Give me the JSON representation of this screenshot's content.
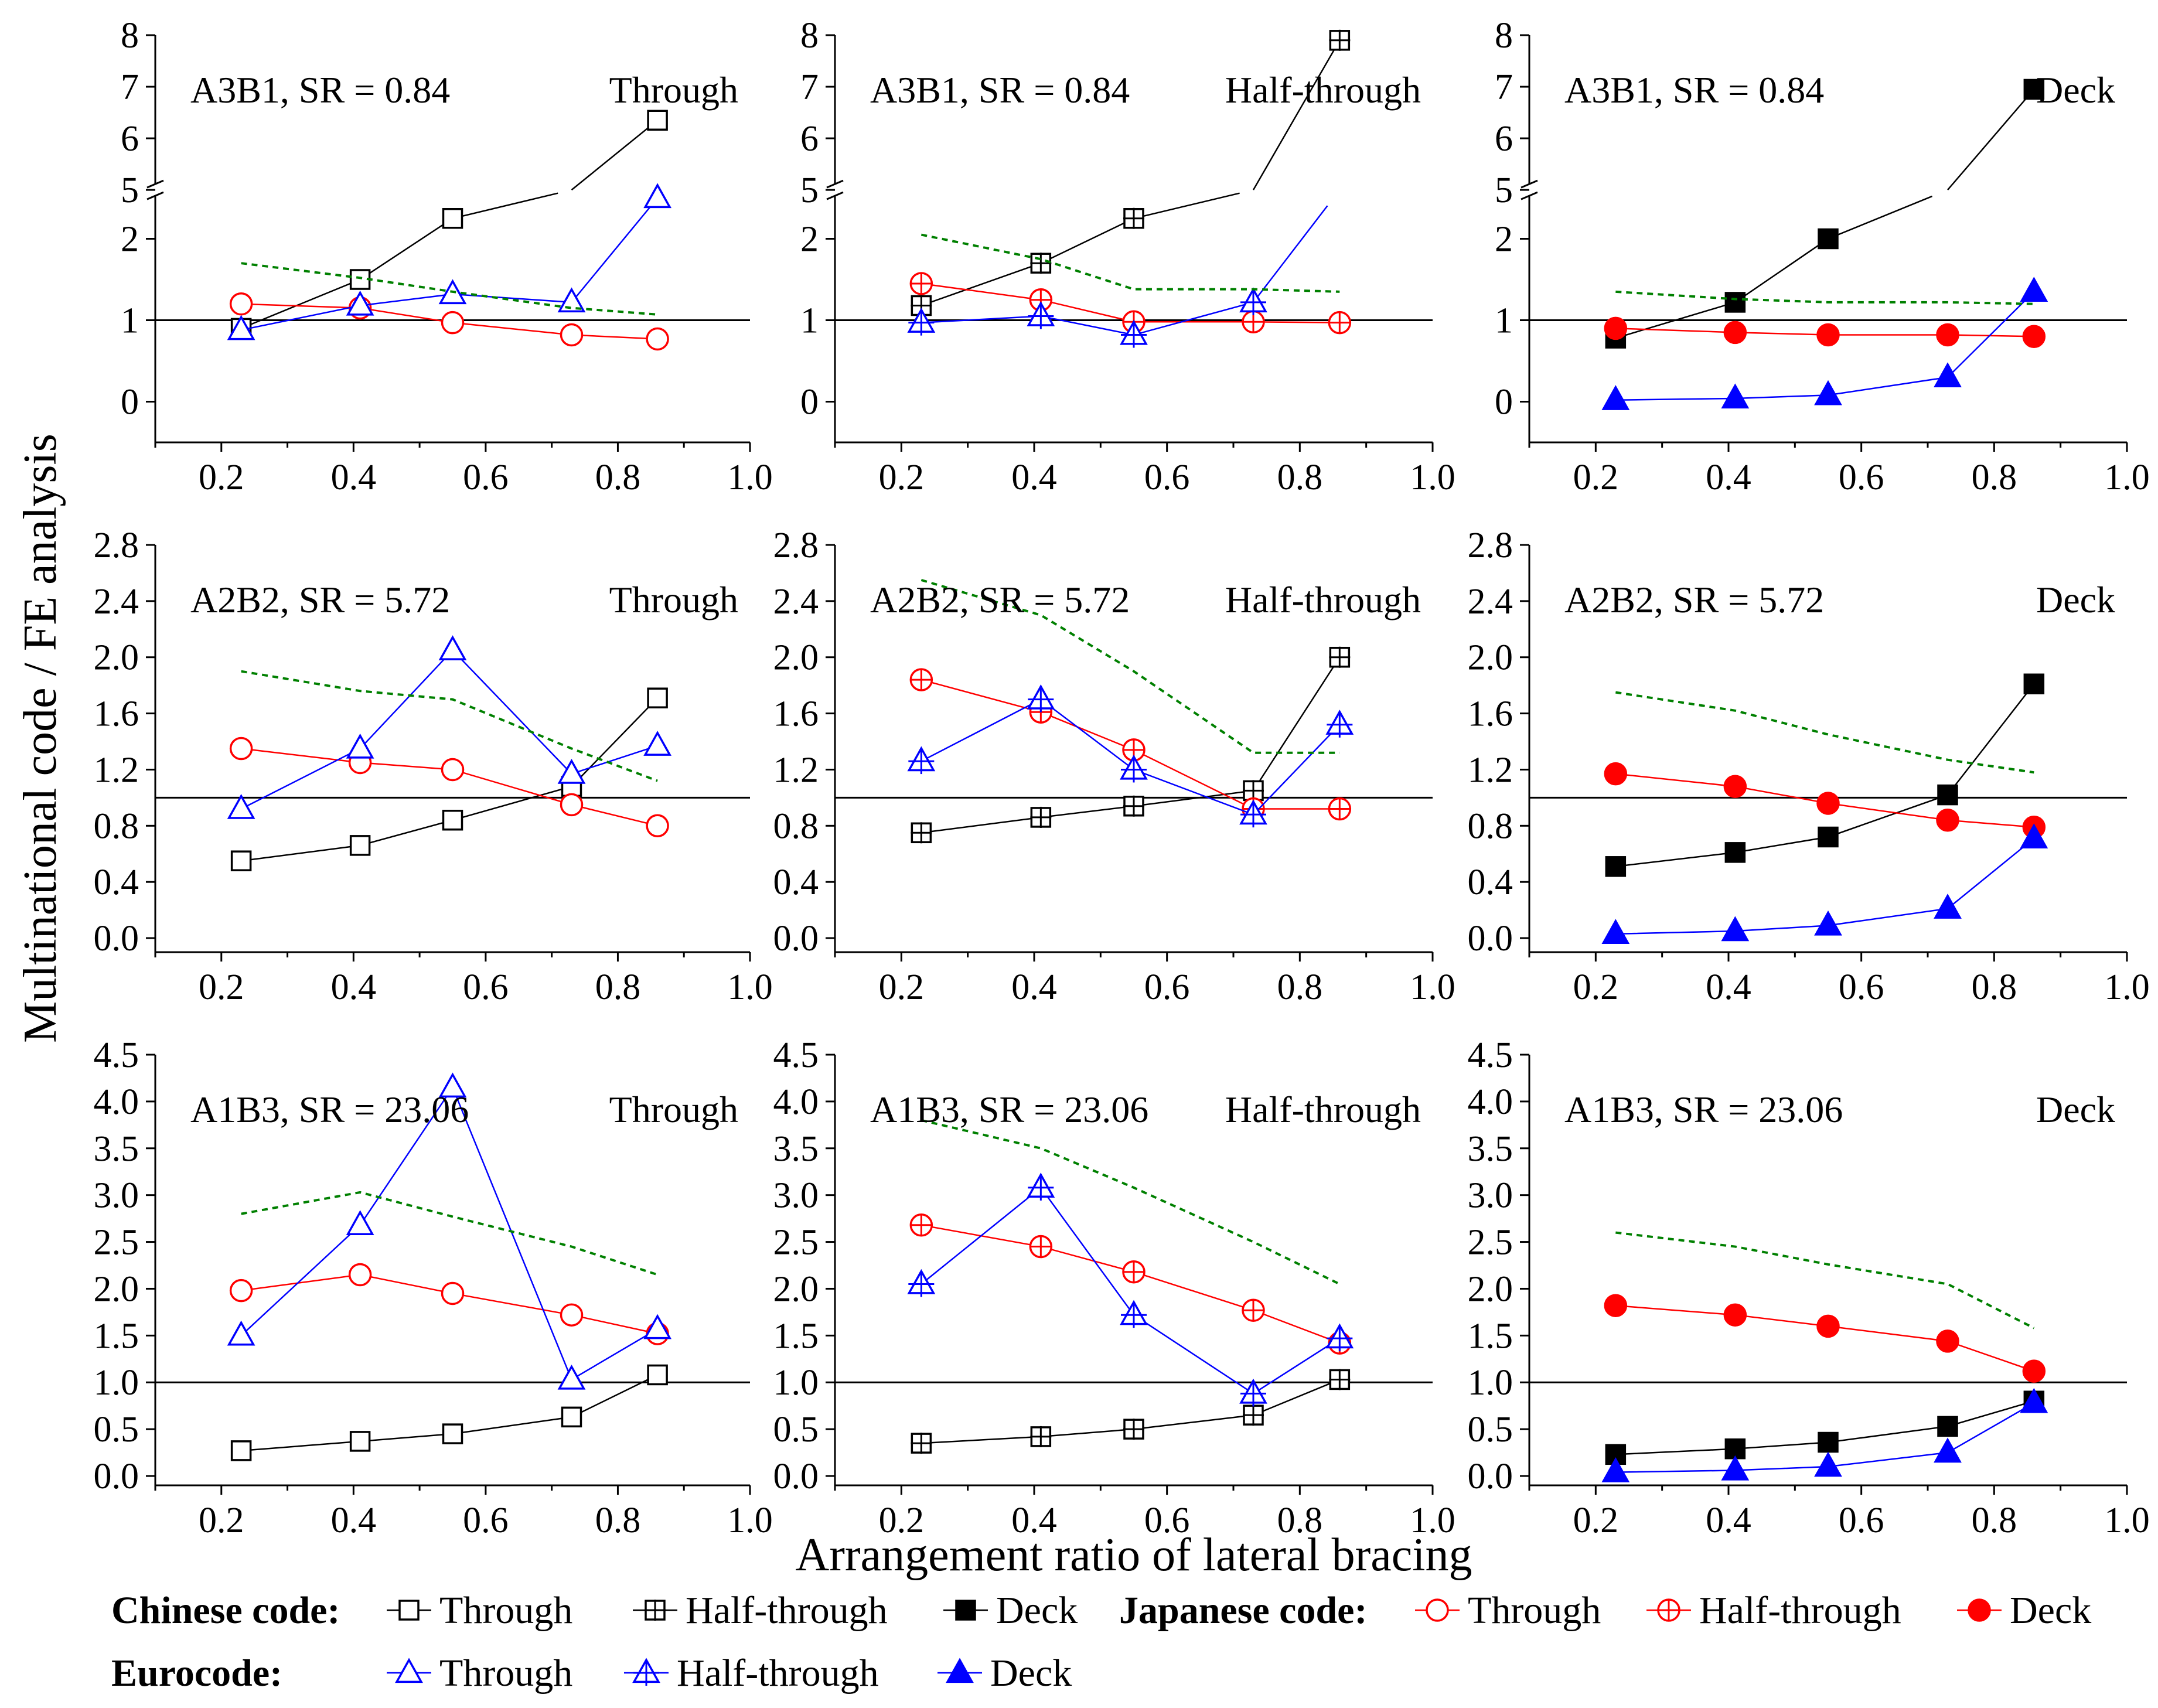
{
  "figure": {
    "ylabel": "Multinational code / FE analysis",
    "xlabel": "Arrangement ratio of lateral bracing"
  },
  "colors": {
    "chinese": "#000000",
    "japanese": "#ff0000",
    "eurocode": "#0000ff",
    "reference": "#008000"
  },
  "legend": {
    "chinese_label": "Chinese code:",
    "japanese_label": "Japanese code:",
    "eurocode_label": "Eurocode:",
    "through": "Through",
    "half_through": "Half-through",
    "deck": "Deck"
  },
  "chart_data": [
    {
      "type": "line",
      "row": 0,
      "col": 0,
      "case": "A3B1, SR = 0.84",
      "arrangement": "Through",
      "x": [
        0.23,
        0.41,
        0.55,
        0.73,
        0.86
      ],
      "xlim": [
        0.1,
        1.0
      ],
      "xticks": [
        0.2,
        0.4,
        0.6,
        0.8,
        1.0
      ],
      "ylim": [
        -0.5,
        8
      ],
      "yticks": [
        0,
        1,
        2,
        5,
        6,
        7,
        8
      ],
      "axis_break": {
        "from": 2.6,
        "to": 5.0
      },
      "hline": 1,
      "series": [
        {
          "name": "Chinese code - Through",
          "code": "chinese",
          "marker": "square",
          "filled": false,
          "values": [
            0.9,
            1.5,
            2.25,
            4.4,
            6.35
          ]
        },
        {
          "name": "Japanese code - Through",
          "code": "japanese",
          "marker": "circle",
          "filled": false,
          "values": [
            1.2,
            1.15,
            0.97,
            0.82,
            0.77
          ]
        },
        {
          "name": "Eurocode - Through",
          "code": "eurocode",
          "marker": "triangle",
          "filled": false,
          "values": [
            0.88,
            1.18,
            1.32,
            1.22,
            2.5
          ]
        },
        {
          "name": "Reference (dashed)",
          "code": "reference",
          "marker": "none",
          "dashed": true,
          "values": [
            1.7,
            1.52,
            1.35,
            1.15,
            1.07
          ]
        }
      ]
    },
    {
      "type": "line",
      "row": 0,
      "col": 1,
      "case": "A3B1, SR = 0.84",
      "arrangement": "Half-through",
      "x": [
        0.23,
        0.41,
        0.55,
        0.73,
        0.86
      ],
      "xlim": [
        0.1,
        1.0
      ],
      "xticks": [
        0.2,
        0.4,
        0.6,
        0.8,
        1.0
      ],
      "ylim": [
        -0.5,
        8
      ],
      "yticks": [
        0,
        1,
        2,
        5,
        6,
        7,
        8
      ],
      "axis_break": {
        "from": 2.6,
        "to": 5.0
      },
      "hline": 1,
      "series": [
        {
          "name": "Chinese code - Half-through",
          "code": "chinese",
          "marker": "square-plus",
          "filled": false,
          "values": [
            1.18,
            1.7,
            2.25,
            4.6,
            7.9
          ]
        },
        {
          "name": "Japanese code - Half-through",
          "code": "japanese",
          "marker": "circle-plus",
          "filled": false,
          "values": [
            1.45,
            1.25,
            0.98,
            0.98,
            0.97
          ]
        },
        {
          "name": "Eurocode - Half-through",
          "code": "eurocode",
          "marker": "triangle-plus",
          "filled": false,
          "values": [
            0.97,
            1.05,
            0.82,
            1.22,
            4.9
          ]
        },
        {
          "name": "Reference (dashed)",
          "code": "reference",
          "marker": "none",
          "dashed": true,
          "values": [
            2.05,
            1.75,
            1.38,
            1.38,
            1.35
          ]
        }
      ]
    },
    {
      "type": "line",
      "row": 0,
      "col": 2,
      "case": "A3B1, SR = 0.84",
      "arrangement": "Deck",
      "x": [
        0.23,
        0.41,
        0.55,
        0.73,
        0.86
      ],
      "xlim": [
        0.1,
        1.0
      ],
      "xticks": [
        0.2,
        0.4,
        0.6,
        0.8,
        1.0
      ],
      "ylim": [
        -0.5,
        8
      ],
      "yticks": [
        0,
        1,
        2,
        5,
        6,
        7,
        8
      ],
      "axis_break": {
        "from": 2.6,
        "to": 5.0
      },
      "hline": 1,
      "series": [
        {
          "name": "Chinese code - Deck",
          "code": "chinese",
          "marker": "square",
          "filled": true,
          "values": [
            0.78,
            1.22,
            2.0,
            4.6,
            6.95
          ]
        },
        {
          "name": "Japanese code - Deck",
          "code": "japanese",
          "marker": "circle",
          "filled": true,
          "values": [
            0.9,
            0.85,
            0.82,
            0.82,
            0.8
          ]
        },
        {
          "name": "Eurocode - Deck",
          "code": "eurocode",
          "marker": "triangle",
          "filled": true,
          "values": [
            0.02,
            0.04,
            0.08,
            0.3,
            1.35
          ]
        },
        {
          "name": "Reference (dashed)",
          "code": "reference",
          "marker": "none",
          "dashed": true,
          "values": [
            1.35,
            1.26,
            1.22,
            1.22,
            1.2
          ]
        }
      ]
    },
    {
      "type": "line",
      "row": 1,
      "col": 0,
      "case": "A2B2, SR = 5.72",
      "arrangement": "Through",
      "x": [
        0.23,
        0.41,
        0.55,
        0.73,
        0.86
      ],
      "xlim": [
        0.1,
        1.0
      ],
      "xticks": [
        0.2,
        0.4,
        0.6,
        0.8,
        1.0
      ],
      "ylim": [
        -0.1,
        2.8
      ],
      "yticks": [
        0.0,
        0.4,
        0.8,
        1.2,
        1.6,
        2.0,
        2.4,
        2.8
      ],
      "hline": 1,
      "series": [
        {
          "name": "Chinese code - Through",
          "code": "chinese",
          "marker": "square",
          "filled": false,
          "values": [
            0.55,
            0.66,
            0.84,
            1.08,
            1.71
          ]
        },
        {
          "name": "Japanese code - Through",
          "code": "japanese",
          "marker": "circle",
          "filled": false,
          "values": [
            1.35,
            1.25,
            1.2,
            0.95,
            0.8
          ]
        },
        {
          "name": "Eurocode - Through",
          "code": "eurocode",
          "marker": "triangle",
          "filled": false,
          "values": [
            0.92,
            1.35,
            2.05,
            1.17,
            1.37
          ]
        },
        {
          "name": "Reference (dashed)",
          "code": "reference",
          "marker": "none",
          "dashed": true,
          "values": [
            1.9,
            1.76,
            1.7,
            1.35,
            1.12
          ]
        }
      ]
    },
    {
      "type": "line",
      "row": 1,
      "col": 1,
      "case": "A2B2, SR = 5.72",
      "arrangement": "Half-through",
      "x": [
        0.23,
        0.41,
        0.55,
        0.73,
        0.86
      ],
      "xlim": [
        0.1,
        1.0
      ],
      "xticks": [
        0.2,
        0.4,
        0.6,
        0.8,
        1.0
      ],
      "ylim": [
        -0.1,
        2.8
      ],
      "yticks": [
        0.0,
        0.4,
        0.8,
        1.2,
        1.6,
        2.0,
        2.4,
        2.8
      ],
      "hline": 1,
      "series": [
        {
          "name": "Chinese code - Half-through",
          "code": "chinese",
          "marker": "square-plus",
          "filled": false,
          "values": [
            0.75,
            0.86,
            0.94,
            1.05,
            2.0
          ]
        },
        {
          "name": "Japanese code - Half-through",
          "code": "japanese",
          "marker": "circle-plus",
          "filled": false,
          "values": [
            1.84,
            1.61,
            1.34,
            0.92,
            0.92
          ]
        },
        {
          "name": "Eurocode - Half-through",
          "code": "eurocode",
          "marker": "triangle-plus",
          "filled": false,
          "values": [
            1.26,
            1.7,
            1.2,
            0.88,
            1.52
          ]
        },
        {
          "name": "Reference (dashed)",
          "code": "reference",
          "marker": "none",
          "dashed": true,
          "values": [
            2.55,
            2.3,
            1.9,
            1.32,
            1.32
          ]
        }
      ]
    },
    {
      "type": "line",
      "row": 1,
      "col": 2,
      "case": "A2B2, SR = 5.72",
      "arrangement": "Deck",
      "x": [
        0.23,
        0.41,
        0.55,
        0.73,
        0.86
      ],
      "xlim": [
        0.1,
        1.0
      ],
      "xticks": [
        0.2,
        0.4,
        0.6,
        0.8,
        1.0
      ],
      "ylim": [
        -0.1,
        2.8
      ],
      "yticks": [
        0.0,
        0.4,
        0.8,
        1.2,
        1.6,
        2.0,
        2.4,
        2.8
      ],
      "hline": 1,
      "series": [
        {
          "name": "Chinese code - Deck",
          "code": "chinese",
          "marker": "square",
          "filled": true,
          "values": [
            0.51,
            0.61,
            0.72,
            1.02,
            1.81
          ]
        },
        {
          "name": "Japanese code - Deck",
          "code": "japanese",
          "marker": "circle",
          "filled": true,
          "values": [
            1.17,
            1.08,
            0.96,
            0.84,
            0.79
          ]
        },
        {
          "name": "Eurocode - Deck",
          "code": "eurocode",
          "marker": "triangle",
          "filled": true,
          "values": [
            0.03,
            0.05,
            0.09,
            0.21,
            0.71
          ]
        },
        {
          "name": "Reference (dashed)",
          "code": "reference",
          "marker": "none",
          "dashed": true,
          "values": [
            1.75,
            1.62,
            1.45,
            1.27,
            1.18
          ]
        }
      ]
    },
    {
      "type": "line",
      "row": 2,
      "col": 0,
      "case": "A1B3, SR = 23.06",
      "arrangement": "Through",
      "x": [
        0.23,
        0.41,
        0.55,
        0.73,
        0.86
      ],
      "xlim": [
        0.1,
        1.0
      ],
      "xticks": [
        0.2,
        0.4,
        0.6,
        0.8,
        1.0
      ],
      "ylim": [
        -0.1,
        4.5
      ],
      "yticks": [
        0.0,
        0.5,
        1.0,
        1.5,
        2.0,
        2.5,
        3.0,
        3.5,
        4.0,
        4.5
      ],
      "hline": 1,
      "series": [
        {
          "name": "Chinese code - Through",
          "code": "chinese",
          "marker": "square",
          "filled": false,
          "values": [
            0.27,
            0.37,
            0.45,
            0.63,
            1.08
          ]
        },
        {
          "name": "Japanese code - Through",
          "code": "japanese",
          "marker": "circle",
          "filled": false,
          "values": [
            1.98,
            2.15,
            1.95,
            1.72,
            1.52
          ]
        },
        {
          "name": "Eurocode - Through",
          "code": "eurocode",
          "marker": "triangle",
          "filled": false,
          "values": [
            1.5,
            2.68,
            4.15,
            1.03,
            1.57
          ]
        },
        {
          "name": "Reference (dashed)",
          "code": "reference",
          "marker": "none",
          "dashed": true,
          "values": [
            2.8,
            3.03,
            2.77,
            2.45,
            2.15
          ]
        }
      ]
    },
    {
      "type": "line",
      "row": 2,
      "col": 1,
      "case": "A1B3, SR = 23.06",
      "arrangement": "Half-through",
      "x": [
        0.23,
        0.41,
        0.55,
        0.73,
        0.86
      ],
      "xlim": [
        0.1,
        1.0
      ],
      "xticks": [
        0.2,
        0.4,
        0.6,
        0.8,
        1.0
      ],
      "ylim": [
        -0.1,
        4.5
      ],
      "yticks": [
        0.0,
        0.5,
        1.0,
        1.5,
        2.0,
        2.5,
        3.0,
        3.5,
        4.0,
        4.5
      ],
      "hline": 1,
      "series": [
        {
          "name": "Chinese code - Half-through",
          "code": "chinese",
          "marker": "square-plus",
          "filled": false,
          "values": [
            0.35,
            0.42,
            0.5,
            0.65,
            1.03
          ]
        },
        {
          "name": "Japanese code - Half-through",
          "code": "japanese",
          "marker": "circle-plus",
          "filled": false,
          "values": [
            2.68,
            2.45,
            2.18,
            1.77,
            1.42
          ]
        },
        {
          "name": "Eurocode - Half-through",
          "code": "eurocode",
          "marker": "triangle-plus",
          "filled": false,
          "values": [
            2.05,
            3.08,
            1.72,
            0.88,
            1.47
          ]
        },
        {
          "name": "Reference (dashed)",
          "code": "reference",
          "marker": "none",
          "dashed": true,
          "values": [
            3.8,
            3.5,
            3.08,
            2.5,
            2.05
          ]
        }
      ]
    },
    {
      "type": "line",
      "row": 2,
      "col": 2,
      "case": "A1B3, SR = 23.06",
      "arrangement": "Deck",
      "x": [
        0.23,
        0.41,
        0.55,
        0.73,
        0.86
      ],
      "xlim": [
        0.1,
        1.0
      ],
      "xticks": [
        0.2,
        0.4,
        0.6,
        0.8,
        1.0
      ],
      "ylim": [
        -0.1,
        4.5
      ],
      "yticks": [
        0.0,
        0.5,
        1.0,
        1.5,
        2.0,
        2.5,
        3.0,
        3.5,
        4.0,
        4.5
      ],
      "hline": 1,
      "series": [
        {
          "name": "Chinese code - Deck",
          "code": "chinese",
          "marker": "square",
          "filled": true,
          "values": [
            0.23,
            0.29,
            0.36,
            0.53,
            0.8
          ]
        },
        {
          "name": "Japanese code - Deck",
          "code": "japanese",
          "marker": "circle",
          "filled": true,
          "values": [
            1.82,
            1.72,
            1.6,
            1.44,
            1.12
          ]
        },
        {
          "name": "Eurocode - Deck",
          "code": "eurocode",
          "marker": "triangle",
          "filled": true,
          "values": [
            0.04,
            0.06,
            0.1,
            0.25,
            0.78
          ]
        },
        {
          "name": "Reference (dashed)",
          "code": "reference",
          "marker": "none",
          "dashed": true,
          "values": [
            2.6,
            2.45,
            2.26,
            2.05,
            1.58
          ]
        }
      ]
    }
  ]
}
